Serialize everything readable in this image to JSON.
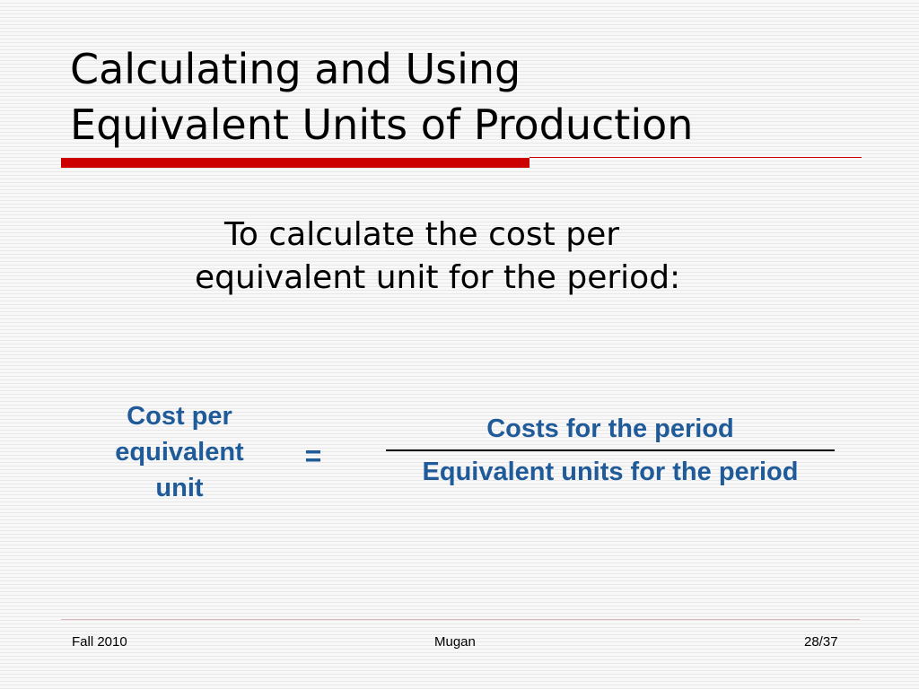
{
  "slide": {
    "title_lines": [
      "Calculating and Using",
      "Equivalent Units of Production"
    ],
    "intro_lines": [
      "To calculate the cost per",
      "equivalent unit for the period:"
    ],
    "formula": {
      "lhs_lines": [
        "Cost per",
        "equivalent",
        "unit"
      ],
      "operator": "=",
      "numerator": "Costs for the period",
      "denominator": "Equivalent units for the period"
    },
    "footer": {
      "left": "Fall 2010",
      "center": "Mugan",
      "right": "28/37"
    }
  },
  "colors": {
    "accent_red": "#cc0000",
    "formula_blue": "#1f5a99"
  }
}
